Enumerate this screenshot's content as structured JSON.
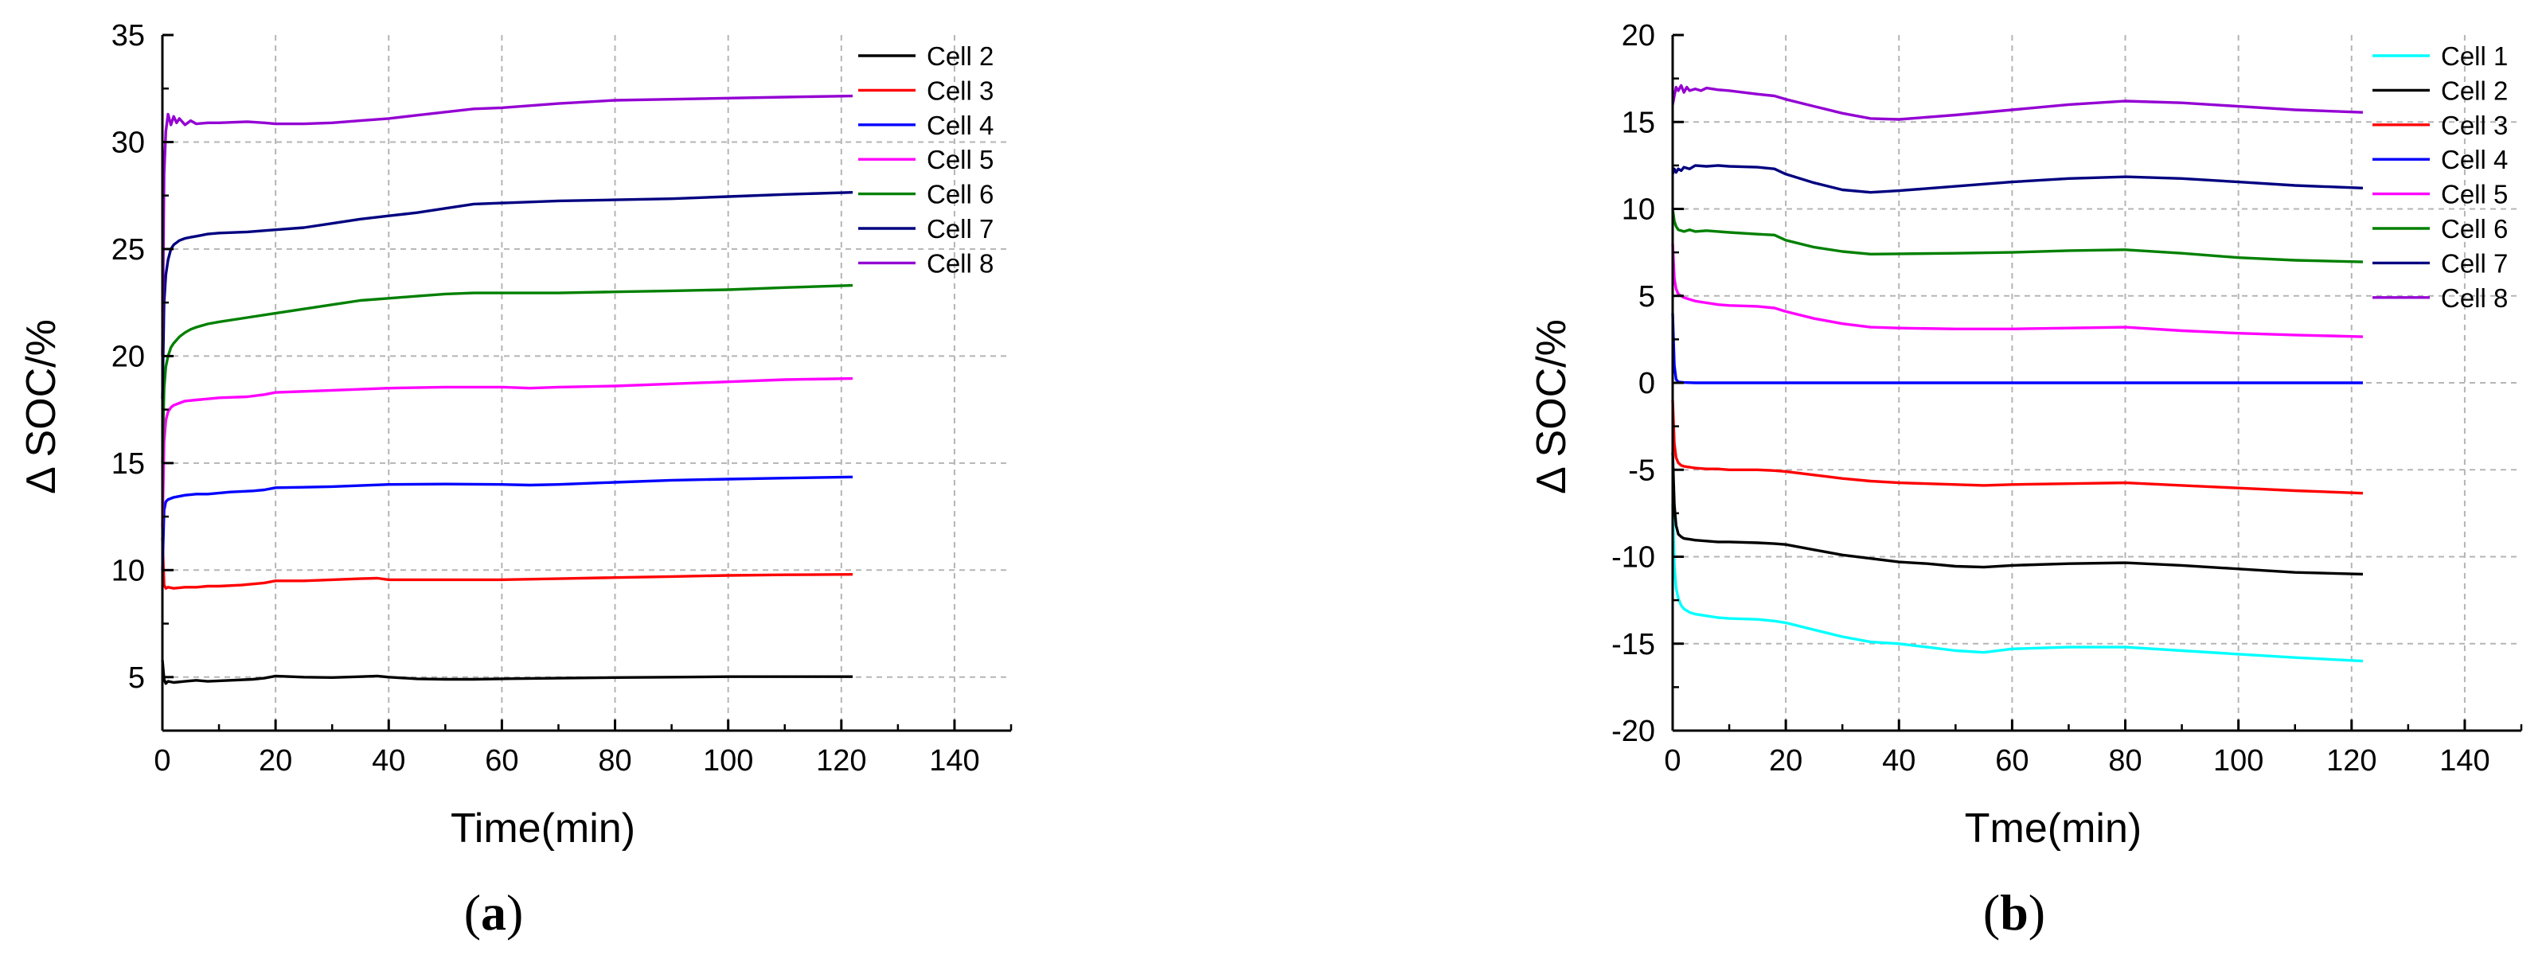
{
  "chart_data": [
    {
      "type": "line",
      "panel": "(a)",
      "xlabel": "Time(min)",
      "ylabel": "Δ SOC/%",
      "xlim": [
        0,
        150
      ],
      "ylim": [
        2.5,
        35
      ],
      "xticks": [
        0,
        20,
        40,
        60,
        80,
        100,
        120,
        140
      ],
      "yticks": [
        5,
        10,
        15,
        20,
        25,
        30,
        35
      ],
      "grid": true,
      "legend_position": "top-right",
      "series": [
        {
          "name": "Cell 2",
          "color": "#000000",
          "x": [
            0,
            0.3,
            0.6,
            1,
            2,
            4,
            6,
            8,
            12,
            16,
            18,
            20,
            25,
            30,
            35,
            38,
            40,
            45,
            50,
            55,
            60,
            70,
            80,
            90,
            100,
            110,
            122
          ],
          "y": [
            5.8,
            4.9,
            4.7,
            4.8,
            4.75,
            4.8,
            4.85,
            4.8,
            4.85,
            4.9,
            4.95,
            5.05,
            5.0,
            4.98,
            5.02,
            5.05,
            5.0,
            4.92,
            4.9,
            4.9,
            4.92,
            4.95,
            4.98,
            5.0,
            5.02,
            5.02,
            5.02
          ]
        },
        {
          "name": "Cell 3",
          "color": "#ff0000",
          "x": [
            0,
            0.3,
            0.6,
            1,
            2,
            4,
            6,
            8,
            10,
            14,
            18,
            20,
            25,
            30,
            35,
            38,
            40,
            45,
            50,
            60,
            70,
            80,
            90,
            100,
            110,
            122
          ],
          "y": [
            11.5,
            9.3,
            9.15,
            9.2,
            9.15,
            9.2,
            9.2,
            9.25,
            9.25,
            9.3,
            9.4,
            9.5,
            9.5,
            9.55,
            9.6,
            9.62,
            9.55,
            9.55,
            9.55,
            9.55,
            9.6,
            9.65,
            9.7,
            9.75,
            9.78,
            9.8
          ]
        },
        {
          "name": "Cell 4",
          "color": "#0000ff",
          "x": [
            0,
            0.3,
            0.6,
            1,
            2,
            4,
            6,
            8,
            12,
            16,
            18,
            20,
            25,
            30,
            35,
            40,
            50,
            60,
            65,
            70,
            80,
            90,
            100,
            110,
            122
          ],
          "y": [
            10,
            12.8,
            13.2,
            13.3,
            13.4,
            13.5,
            13.55,
            13.55,
            13.65,
            13.7,
            13.75,
            13.85,
            13.87,
            13.9,
            13.95,
            14.0,
            14.02,
            14.0,
            13.97,
            14.0,
            14.1,
            14.2,
            14.25,
            14.3,
            14.35
          ]
        },
        {
          "name": "Cell 5",
          "color": "#ff00ff",
          "x": [
            0,
            0.3,
            0.6,
            1,
            1.5,
            2,
            3,
            4,
            6,
            8,
            10,
            15,
            18,
            20,
            30,
            40,
            50,
            60,
            65,
            70,
            80,
            90,
            100,
            110,
            122
          ],
          "y": [
            12,
            16.0,
            17.0,
            17.4,
            17.6,
            17.7,
            17.8,
            17.9,
            17.95,
            18.0,
            18.05,
            18.1,
            18.2,
            18.3,
            18.4,
            18.5,
            18.55,
            18.55,
            18.5,
            18.55,
            18.6,
            18.7,
            18.8,
            18.9,
            18.95
          ]
        },
        {
          "name": "Cell 6",
          "color": "#008000",
          "x": [
            0,
            0.3,
            0.6,
            1,
            1.5,
            2,
            3,
            4,
            5,
            6,
            8,
            10,
            15,
            20,
            25,
            30,
            35,
            40,
            45,
            50,
            55,
            60,
            70,
            80,
            90,
            100,
            110,
            122
          ],
          "y": [
            15,
            18.5,
            19.5,
            20.0,
            20.4,
            20.6,
            20.9,
            21.1,
            21.25,
            21.35,
            21.5,
            21.6,
            21.8,
            22.0,
            22.2,
            22.4,
            22.6,
            22.7,
            22.8,
            22.9,
            22.95,
            22.95,
            22.95,
            23.0,
            23.05,
            23.1,
            23.2,
            23.3
          ]
        },
        {
          "name": "Cell 7",
          "color": "#000080",
          "x": [
            0,
            0.3,
            0.6,
            1,
            1.5,
            2,
            3,
            4,
            5,
            6,
            8,
            10,
            15,
            20,
            25,
            30,
            35,
            40,
            45,
            50,
            55,
            60,
            70,
            80,
            90,
            100,
            110,
            122
          ],
          "y": [
            18,
            22.5,
            23.8,
            24.5,
            25.0,
            25.2,
            25.4,
            25.5,
            25.55,
            25.6,
            25.7,
            25.75,
            25.8,
            25.9,
            26.0,
            26.2,
            26.4,
            26.55,
            26.7,
            26.9,
            27.1,
            27.15,
            27.25,
            27.3,
            27.35,
            27.45,
            27.55,
            27.65
          ]
        },
        {
          "name": "Cell 8",
          "color": "#9400d3",
          "x": [
            0,
            0.3,
            0.6,
            1,
            1.5,
            2,
            2.5,
            3,
            4,
            5,
            6,
            8,
            10,
            15,
            18,
            20,
            25,
            30,
            35,
            40,
            45,
            50,
            55,
            60,
            70,
            80,
            90,
            100,
            110,
            122
          ],
          "y": [
            20,
            28.5,
            30.5,
            31.3,
            30.8,
            31.2,
            30.9,
            31.1,
            30.8,
            31.0,
            30.85,
            30.9,
            30.9,
            30.95,
            30.9,
            30.85,
            30.85,
            30.9,
            31.0,
            31.1,
            31.25,
            31.4,
            31.55,
            31.6,
            31.8,
            31.95,
            32.0,
            32.05,
            32.1,
            32.15
          ]
        }
      ]
    },
    {
      "type": "line",
      "panel": "(b)",
      "xlabel": "Tme(min)",
      "ylabel": "Δ SOC/%",
      "xlim": [
        0,
        150
      ],
      "ylim": [
        -20,
        20
      ],
      "xticks": [
        0,
        20,
        40,
        60,
        80,
        100,
        120,
        140
      ],
      "yticks": [
        -20,
        -15,
        -10,
        -5,
        0,
        5,
        10,
        15,
        20
      ],
      "grid": true,
      "legend_position": "top-right",
      "series": [
        {
          "name": "Cell 1",
          "color": "#00ffff",
          "x": [
            0,
            0.3,
            0.6,
            1,
            1.5,
            2,
            3,
            4,
            6,
            8,
            10,
            15,
            18,
            20,
            25,
            30,
            35,
            40,
            45,
            50,
            55,
            60,
            70,
            80,
            90,
            100,
            110,
            122
          ],
          "y": [
            -7,
            -10.5,
            -11.8,
            -12.4,
            -12.8,
            -13.0,
            -13.2,
            -13.3,
            -13.4,
            -13.5,
            -13.55,
            -13.6,
            -13.7,
            -13.8,
            -14.2,
            -14.6,
            -14.9,
            -15.0,
            -15.2,
            -15.4,
            -15.5,
            -15.3,
            -15.2,
            -15.2,
            -15.4,
            -15.6,
            -15.8,
            -16.0
          ]
        },
        {
          "name": "Cell 2",
          "color": "#000000",
          "x": [
            0,
            0.3,
            0.6,
            1,
            1.5,
            2,
            3,
            4,
            6,
            8,
            10,
            15,
            18,
            20,
            25,
            30,
            35,
            40,
            45,
            50,
            55,
            60,
            70,
            80,
            90,
            100,
            110,
            122
          ],
          "y": [
            -4,
            -7.0,
            -8.2,
            -8.7,
            -8.85,
            -8.95,
            -9.0,
            -9.05,
            -9.1,
            -9.15,
            -9.15,
            -9.2,
            -9.25,
            -9.3,
            -9.6,
            -9.9,
            -10.1,
            -10.3,
            -10.4,
            -10.55,
            -10.6,
            -10.5,
            -10.4,
            -10.35,
            -10.5,
            -10.7,
            -10.9,
            -11.0
          ]
        },
        {
          "name": "Cell 3",
          "color": "#ff0000",
          "x": [
            0,
            0.3,
            0.6,
            1,
            1.5,
            2,
            3,
            4,
            6,
            8,
            10,
            15,
            18,
            20,
            25,
            30,
            35,
            40,
            50,
            55,
            60,
            70,
            80,
            90,
            100,
            110,
            122
          ],
          "y": [
            -1,
            -3.5,
            -4.3,
            -4.6,
            -4.75,
            -4.8,
            -4.85,
            -4.9,
            -4.95,
            -4.95,
            -5.0,
            -5.0,
            -5.05,
            -5.1,
            -5.3,
            -5.5,
            -5.65,
            -5.75,
            -5.85,
            -5.9,
            -5.85,
            -5.8,
            -5.75,
            -5.9,
            -6.05,
            -6.2,
            -6.35
          ]
        },
        {
          "name": "Cell 4",
          "color": "#0000ff",
          "x": [
            0,
            0.3,
            0.6,
            1,
            2,
            4,
            8,
            20,
            40,
            60,
            80,
            100,
            122
          ],
          "y": [
            4,
            1.0,
            0.2,
            0.05,
            0.02,
            0.0,
            0.0,
            0.0,
            0.0,
            0.0,
            0.0,
            0.0,
            0.0
          ]
        },
        {
          "name": "Cell 5",
          "color": "#ff00ff",
          "x": [
            0,
            0.3,
            0.6,
            1,
            1.5,
            2,
            3,
            4,
            6,
            8,
            10,
            15,
            18,
            20,
            25,
            30,
            35,
            40,
            50,
            60,
            70,
            80,
            90,
            100,
            110,
            122
          ],
          "y": [
            8,
            6.0,
            5.4,
            5.1,
            5.0,
            4.9,
            4.8,
            4.7,
            4.6,
            4.5,
            4.45,
            4.4,
            4.3,
            4.1,
            3.7,
            3.4,
            3.2,
            3.15,
            3.1,
            3.1,
            3.15,
            3.2,
            3.0,
            2.85,
            2.75,
            2.65
          ]
        },
        {
          "name": "Cell 6",
          "color": "#008000",
          "x": [
            0,
            0.3,
            0.6,
            1,
            1.5,
            2,
            3,
            4,
            6,
            8,
            10,
            15,
            18,
            20,
            25,
            30,
            35,
            40,
            50,
            60,
            70,
            80,
            90,
            100,
            110,
            122
          ],
          "y": [
            10,
            9.3,
            9.0,
            8.8,
            8.75,
            8.7,
            8.8,
            8.7,
            8.75,
            8.7,
            8.65,
            8.55,
            8.5,
            8.2,
            7.8,
            7.55,
            7.4,
            7.42,
            7.45,
            7.5,
            7.6,
            7.65,
            7.45,
            7.2,
            7.05,
            6.95
          ]
        },
        {
          "name": "Cell 7",
          "color": "#000080",
          "x": [
            0,
            0.3,
            0.6,
            1,
            1.5,
            2,
            3,
            4,
            6,
            8,
            10,
            15,
            18,
            20,
            25,
            30,
            35,
            40,
            50,
            60,
            70,
            80,
            90,
            100,
            110,
            122
          ],
          "y": [
            12,
            12.3,
            12.1,
            12.3,
            12.2,
            12.4,
            12.3,
            12.5,
            12.45,
            12.5,
            12.45,
            12.4,
            12.3,
            12.0,
            11.5,
            11.1,
            10.95,
            11.05,
            11.3,
            11.55,
            11.75,
            11.85,
            11.75,
            11.55,
            11.35,
            11.2
          ]
        },
        {
          "name": "Cell 8",
          "color": "#9400d3",
          "x": [
            0,
            0.3,
            0.6,
            1,
            1.5,
            2,
            2.5,
            3,
            4,
            5,
            6,
            8,
            10,
            15,
            18,
            20,
            25,
            30,
            35,
            40,
            50,
            60,
            70,
            80,
            90,
            100,
            110,
            122
          ],
          "y": [
            16,
            16.5,
            17.0,
            16.8,
            17.1,
            16.7,
            17.0,
            16.8,
            16.9,
            16.8,
            16.95,
            16.85,
            16.8,
            16.6,
            16.5,
            16.3,
            15.9,
            15.5,
            15.2,
            15.15,
            15.4,
            15.7,
            16.0,
            16.2,
            16.1,
            15.9,
            15.7,
            15.55
          ]
        }
      ]
    }
  ]
}
